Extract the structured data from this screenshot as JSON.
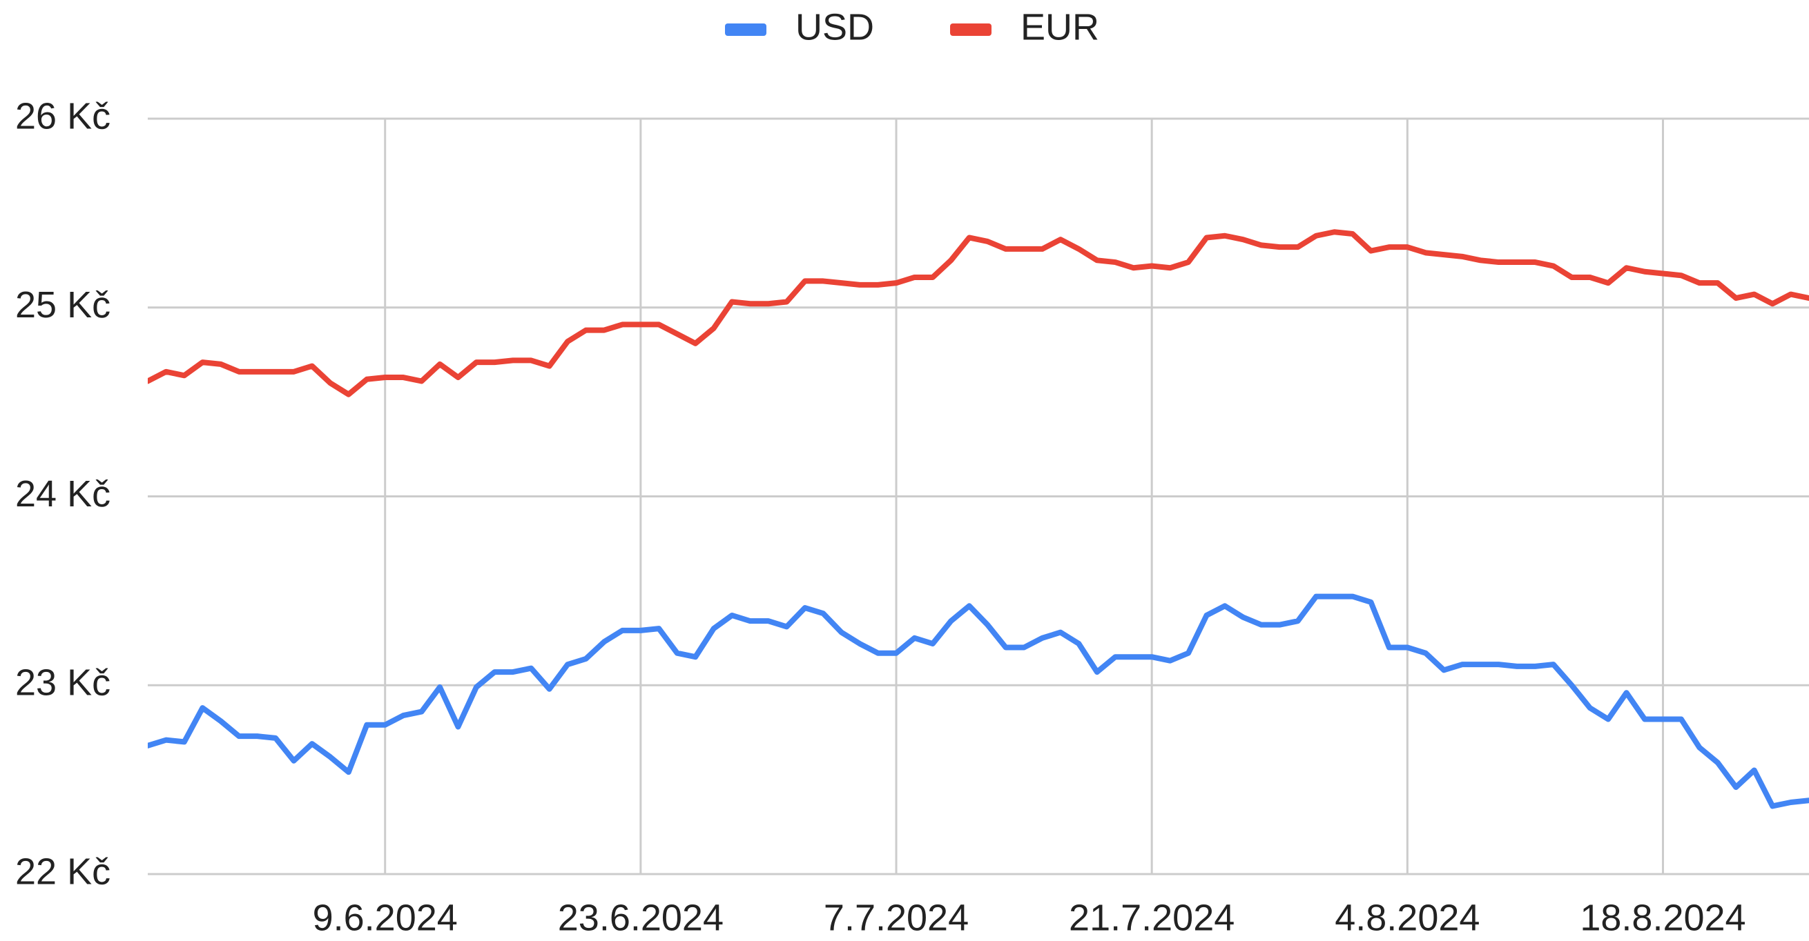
{
  "chart_data": {
    "type": "line",
    "x": [
      "2024-05-27",
      "2024-05-28",
      "2024-05-29",
      "2024-05-30",
      "2024-05-31",
      "2024-06-01",
      "2024-06-02",
      "2024-06-03",
      "2024-06-04",
      "2024-06-05",
      "2024-06-06",
      "2024-06-07",
      "2024-06-08",
      "2024-06-09",
      "2024-06-10",
      "2024-06-11",
      "2024-06-12",
      "2024-06-13",
      "2024-06-14",
      "2024-06-15",
      "2024-06-16",
      "2024-06-17",
      "2024-06-18",
      "2024-06-19",
      "2024-06-20",
      "2024-06-21",
      "2024-06-22",
      "2024-06-23",
      "2024-06-24",
      "2024-06-25",
      "2024-06-26",
      "2024-06-27",
      "2024-06-28",
      "2024-06-29",
      "2024-06-30",
      "2024-07-01",
      "2024-07-02",
      "2024-07-03",
      "2024-07-04",
      "2024-07-05",
      "2024-07-06",
      "2024-07-07",
      "2024-07-08",
      "2024-07-09",
      "2024-07-10",
      "2024-07-11",
      "2024-07-12",
      "2024-07-13",
      "2024-07-14",
      "2024-07-15",
      "2024-07-16",
      "2024-07-17",
      "2024-07-18",
      "2024-07-19",
      "2024-07-20",
      "2024-07-21",
      "2024-07-22",
      "2024-07-23",
      "2024-07-24",
      "2024-07-25",
      "2024-07-26",
      "2024-07-27",
      "2024-07-28",
      "2024-07-29",
      "2024-07-30",
      "2024-07-31",
      "2024-08-01",
      "2024-08-02",
      "2024-08-03",
      "2024-08-04",
      "2024-08-05",
      "2024-08-06",
      "2024-08-07",
      "2024-08-08",
      "2024-08-09",
      "2024-08-10",
      "2024-08-11",
      "2024-08-12",
      "2024-08-13",
      "2024-08-14",
      "2024-08-15",
      "2024-08-16",
      "2024-08-17",
      "2024-08-18",
      "2024-08-19",
      "2024-08-20",
      "2024-08-21",
      "2024-08-22",
      "2024-08-23",
      "2024-08-24",
      "2024-08-25",
      "2024-08-26"
    ],
    "series": [
      {
        "name": "USD",
        "color": "#4285f4",
        "values": [
          22.68,
          22.71,
          22.7,
          22.88,
          22.81,
          22.73,
          22.73,
          22.72,
          22.6,
          22.69,
          22.62,
          22.54,
          22.79,
          22.79,
          22.84,
          22.86,
          22.99,
          22.78,
          22.99,
          23.07,
          23.07,
          23.09,
          22.98,
          23.11,
          23.14,
          23.23,
          23.29,
          23.29,
          23.3,
          23.17,
          23.15,
          23.3,
          23.37,
          23.34,
          23.34,
          23.31,
          23.41,
          23.38,
          23.28,
          23.22,
          23.17,
          23.17,
          23.25,
          23.22,
          23.34,
          23.42,
          23.32,
          23.2,
          23.2,
          23.25,
          23.28,
          23.22,
          23.07,
          23.15,
          23.15,
          23.15,
          23.13,
          23.17,
          23.37,
          23.42,
          23.36,
          23.32,
          23.32,
          23.34,
          23.47,
          23.47,
          23.47,
          23.44,
          23.2,
          23.2,
          23.17,
          23.08,
          23.11,
          23.11,
          23.11,
          23.1,
          23.1,
          23.11,
          23.0,
          22.88,
          22.82,
          22.96,
          22.82,
          22.82,
          22.82,
          22.67,
          22.59,
          22.46,
          22.55,
          22.36,
          22.38,
          22.39
        ]
      },
      {
        "name": "EUR",
        "color": "#ea4335",
        "values": [
          24.61,
          24.66,
          24.64,
          24.71,
          24.7,
          24.66,
          24.66,
          24.66,
          24.66,
          24.69,
          24.6,
          24.54,
          24.62,
          24.63,
          24.63,
          24.61,
          24.7,
          24.63,
          24.71,
          24.71,
          24.72,
          24.72,
          24.69,
          24.82,
          24.88,
          24.88,
          24.91,
          24.91,
          24.91,
          24.86,
          24.81,
          24.89,
          25.03,
          25.02,
          25.02,
          25.03,
          25.14,
          25.14,
          25.13,
          25.12,
          25.12,
          25.13,
          25.16,
          25.16,
          25.25,
          25.37,
          25.35,
          25.31,
          25.31,
          25.31,
          25.36,
          25.31,
          25.25,
          25.24,
          25.21,
          25.22,
          25.21,
          25.24,
          25.37,
          25.38,
          25.36,
          25.33,
          25.32,
          25.32,
          25.38,
          25.4,
          25.39,
          25.3,
          25.32,
          25.32,
          25.29,
          25.28,
          25.27,
          25.25,
          25.24,
          25.24,
          25.24,
          25.22,
          25.16,
          25.16,
          25.13,
          25.21,
          25.19,
          25.18,
          25.17,
          25.13,
          25.13,
          25.05,
          25.07,
          25.02,
          25.07,
          25.05
        ]
      }
    ],
    "xlim": [
      "2024-05-27",
      "2024-08-26"
    ],
    "xticks": [
      {
        "value": "2024-06-09",
        "label": "9.6.2024"
      },
      {
        "value": "2024-06-23",
        "label": "23.6.2024"
      },
      {
        "value": "2024-07-07",
        "label": "7.7.2024"
      },
      {
        "value": "2024-07-21",
        "label": "21.7.2024"
      },
      {
        "value": "2024-08-04",
        "label": "4.8.2024"
      },
      {
        "value": "2024-08-18",
        "label": "18.8.2024"
      }
    ],
    "ylim": [
      22,
      26
    ],
    "yticks": [
      {
        "value": 22,
        "label": "22 Kč"
      },
      {
        "value": 23,
        "label": "23 Kč"
      },
      {
        "value": 24,
        "label": "24 Kč"
      },
      {
        "value": 25,
        "label": "25 Kč"
      },
      {
        "value": 26,
        "label": "26 Kč"
      }
    ],
    "grid": true,
    "legend": "top"
  }
}
